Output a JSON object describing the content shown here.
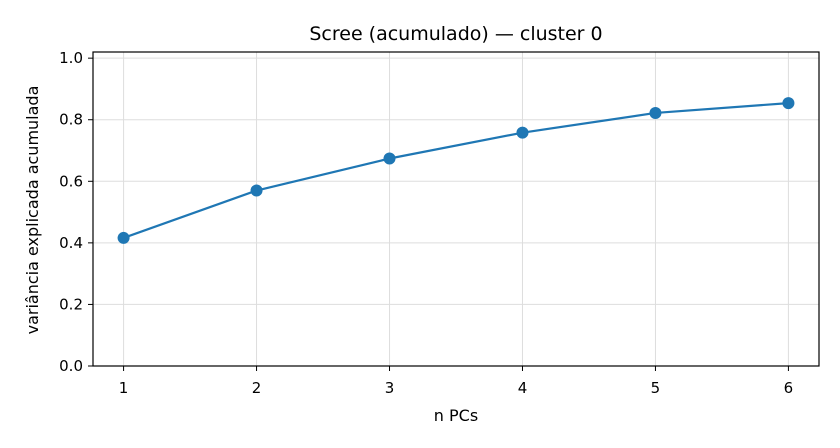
{
  "chart_data": {
    "type": "line",
    "title": "Scree (acumulado) — cluster 0",
    "xlabel": "n PCs",
    "ylabel": "variância explicada acumulada",
    "x": [
      1,
      2,
      3,
      4,
      5,
      6
    ],
    "series": [
      {
        "values": [
          0.416,
          0.57,
          0.674,
          0.758,
          0.822,
          0.854
        ],
        "color": "#1f77b4",
        "marker": "circle"
      }
    ],
    "xlim": [
      0.77,
      6.23
    ],
    "ylim": [
      0,
      1.02
    ],
    "xticks": [
      "1",
      "2",
      "3",
      "4",
      "5",
      "6"
    ],
    "yticks": [
      "0.0",
      "0.2",
      "0.4",
      "0.6",
      "0.8",
      "1.0"
    ],
    "grid": true,
    "legend": "none"
  }
}
